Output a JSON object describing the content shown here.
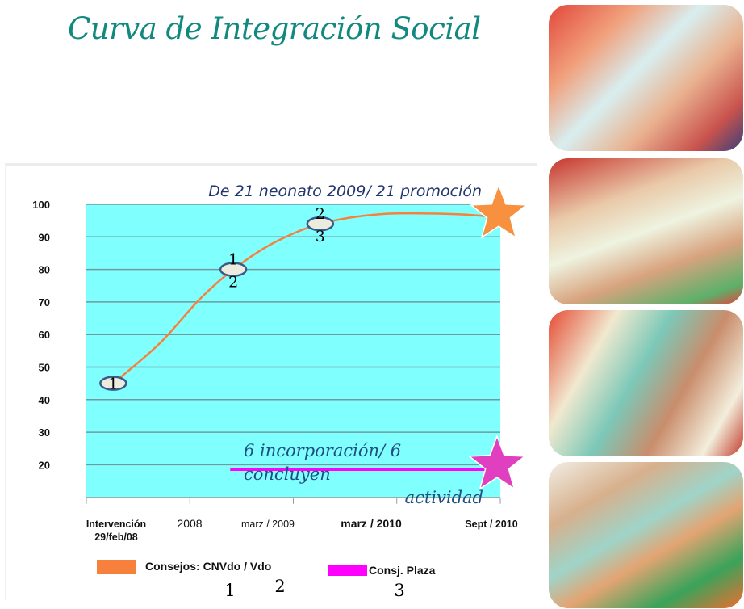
{
  "slide": {
    "title": "Curva de Integración Social"
  },
  "photos": [
    {
      "icon": "photo-baby-massage-legs"
    },
    {
      "icon": "photo-baby-massage-back-1"
    },
    {
      "icon": "photo-baby-massage-back-2"
    },
    {
      "icon": "photo-baby-lying-toy"
    }
  ],
  "chart_data": {
    "type": "line",
    "title": "",
    "ylim": [
      10,
      100
    ],
    "yticks": [
      20,
      30,
      40,
      50,
      60,
      70,
      80,
      90,
      100
    ],
    "grid": true,
    "background": "#80ffff",
    "x_categories": [
      {
        "line1": "Intervención",
        "line2": "29/feb/08"
      },
      {
        "line1": "2008",
        "line2": ""
      },
      {
        "line1": "marz /  2009",
        "line2": ""
      },
      {
        "line1": "marz  / 2010",
        "line2": ""
      },
      {
        "line1": "Sept / 2010",
        "line2": ""
      }
    ],
    "series": [
      {
        "name": "Consejos: CNVdo / Vdo",
        "color": "#f7803c",
        "points": [
          [
            0.26,
            45
          ],
          [
            0.7,
            57
          ],
          [
            1.1,
            71
          ],
          [
            1.42,
            80
          ],
          [
            1.8,
            88
          ],
          [
            2.26,
            94
          ],
          [
            2.85,
            97
          ],
          [
            3.55,
            97
          ],
          [
            4.0,
            96
          ]
        ]
      },
      {
        "name": "Consj. Plaza",
        "color": "#ff00ff",
        "points": [
          [
            1.39,
            18.5
          ],
          [
            3.87,
            18.5
          ]
        ]
      }
    ],
    "markers": [
      {
        "x": 0.26,
        "y": 45,
        "above": "",
        "inside": "1",
        "below": ""
      },
      {
        "x": 1.42,
        "y": 80,
        "above": "1",
        "inside": "",
        "below": "2"
      },
      {
        "x": 2.26,
        "y": 94,
        "above": "2",
        "inside": "",
        "below": "3"
      }
    ],
    "annotations": {
      "top": "De 21 neonato 2009/ 21 promoción",
      "bottom_line1": "6 incorporación/ 6",
      "bottom_line2": "concluyen",
      "bottom_right": "actividad"
    },
    "stars": [
      {
        "series": "Consejos: CNVdo / Vdo",
        "color": "#f7903f"
      },
      {
        "series": "Consj. Plaza",
        "color": "#e040c0"
      }
    ],
    "legend": {
      "placement": "bottom",
      "entries": [
        {
          "label": "Consejos: CNVdo / Vdo",
          "color": "#f7803c",
          "numbers": [
            "1",
            "2"
          ]
        },
        {
          "label": "Consj. Plaza",
          "color": "#ff00ff",
          "numbers": [
            "3"
          ]
        }
      ]
    }
  }
}
